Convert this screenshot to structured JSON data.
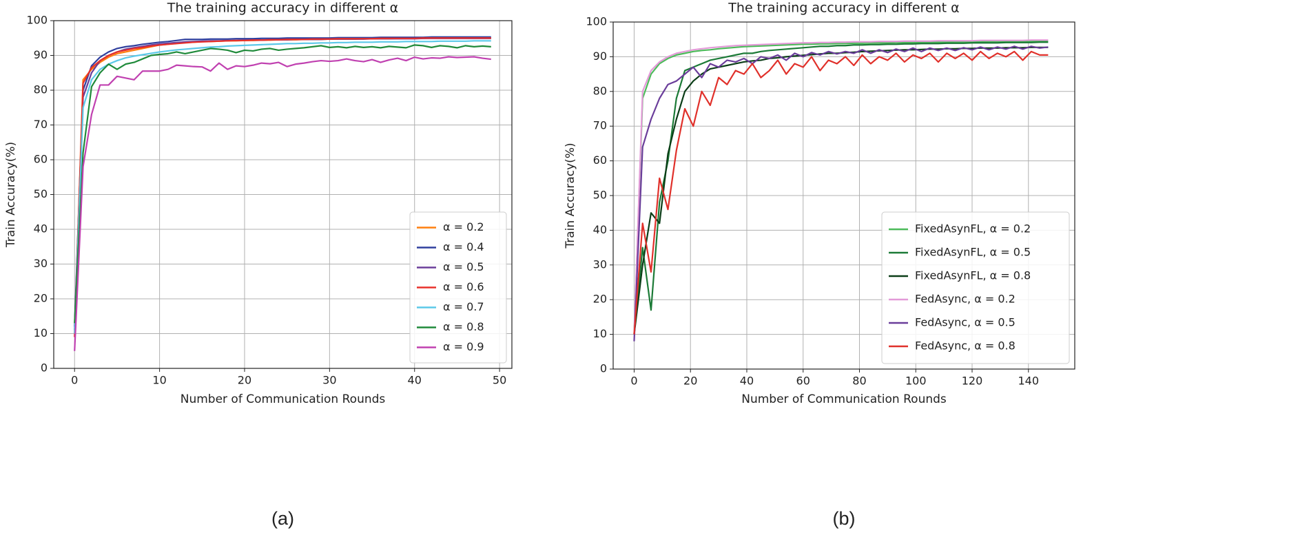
{
  "chart_data": [
    {
      "type": "line",
      "title": "The training accuracy in different α",
      "caption": "(a)",
      "xlabel": "Number of Communication Rounds",
      "ylabel": "Train Accuracy(%)",
      "x": [
        0,
        1,
        2,
        3,
        4,
        5,
        6,
        7,
        8,
        9,
        10,
        11,
        12,
        13,
        14,
        15,
        16,
        17,
        18,
        19,
        20,
        21,
        22,
        23,
        24,
        25,
        26,
        27,
        28,
        29,
        30,
        31,
        32,
        33,
        34,
        35,
        36,
        37,
        38,
        39,
        40,
        41,
        42,
        43,
        44,
        45,
        46,
        47,
        48,
        49
      ],
      "xlim": [
        -2.45,
        51.45
      ],
      "xticks": [
        0,
        10,
        20,
        30,
        40,
        50
      ],
      "ylim": [
        0,
        100
      ],
      "yticks": [
        0,
        10,
        20,
        30,
        40,
        50,
        60,
        70,
        80,
        90,
        100
      ],
      "grid": true,
      "legend": "lower right",
      "series": [
        {
          "name": "α = 0.2",
          "color": "#ff7f0e",
          "values": [
            10,
            83,
            86,
            88,
            89.5,
            90.5,
            91,
            91.5,
            92,
            92.5,
            93,
            93.2,
            93.5,
            93.7,
            93.8,
            94,
            94,
            94.1,
            94.2,
            94.2,
            94.3,
            94.3,
            94.4,
            94.4,
            94.5,
            94.5,
            94.5,
            94.6,
            94.6,
            94.6,
            94.7,
            94.7,
            94.7,
            94.7,
            94.8,
            94.8,
            94.8,
            94.8,
            94.9,
            94.9,
            94.9,
            94.9,
            95,
            95,
            95,
            95,
            95,
            95,
            95,
            95
          ]
        },
        {
          "name": "α = 0.4",
          "color": "#2f3f9e",
          "values": [
            12,
            80,
            87,
            89.5,
            91,
            92,
            92.5,
            92.8,
            93.2,
            93.5,
            93.8,
            94,
            94.3,
            94.6,
            94.6,
            94.6,
            94.7,
            94.7,
            94.7,
            94.8,
            94.8,
            94.8,
            94.9,
            94.9,
            94.9,
            95,
            95,
            95,
            95,
            95,
            95,
            95.1,
            95.1,
            95.1,
            95.1,
            95.1,
            95.2,
            95.2,
            95.2,
            95.2,
            95.2,
            95.2,
            95.3,
            95.3,
            95.3,
            95.3,
            95.3,
            95.3,
            95.3,
            95.3
          ]
        },
        {
          "name": "α = 0.5",
          "color": "#6a3d9a",
          "values": [
            11,
            78,
            85,
            88.5,
            90,
            91,
            91.8,
            92.2,
            92.6,
            93,
            93.3,
            93.5,
            93.7,
            93.9,
            94,
            94.1,
            94.2,
            94.2,
            94.3,
            94.3,
            94.4,
            94.4,
            94.4,
            94.5,
            94.5,
            94.5,
            94.6,
            94.6,
            94.6,
            94.6,
            94.7,
            94.7,
            94.7,
            94.7,
            94.7,
            94.8,
            94.8,
            94.8,
            94.8,
            94.8,
            94.8,
            94.9,
            94.9,
            94.9,
            94.9,
            94.9,
            94.9,
            94.9,
            94.9,
            94.9
          ]
        },
        {
          "name": "α = 0.6",
          "color": "#e8302a",
          "values": [
            9,
            82,
            86.5,
            88.5,
            90,
            91,
            91.5,
            92,
            92.3,
            92.7,
            93,
            93.2,
            93.4,
            93.6,
            93.8,
            93.9,
            94,
            94.1,
            94.2,
            94.3,
            94.3,
            94.4,
            94.4,
            94.5,
            94.5,
            94.6,
            94.6,
            94.6,
            94.7,
            94.7,
            94.7,
            94.8,
            94.8,
            94.8,
            94.8,
            94.8,
            94.9,
            94.9,
            94.9,
            94.9,
            94.9,
            95,
            95,
            95,
            95,
            95,
            95,
            95,
            95,
            95
          ]
        },
        {
          "name": "α = 0.7",
          "color": "#5bc8e8",
          "values": [
            10,
            75,
            83,
            86,
            87.5,
            88.5,
            89.3,
            89.8,
            90.2,
            90.6,
            91,
            91.3,
            91.6,
            91.8,
            92,
            92.2,
            92.4,
            92.5,
            92.7,
            92.8,
            92.9,
            93,
            93.1,
            93.2,
            93.3,
            93.4,
            93.4,
            93.5,
            93.5,
            93.6,
            93.6,
            93.7,
            93.7,
            93.8,
            93.8,
            93.8,
            93.9,
            93.9,
            93.9,
            94,
            94,
            94,
            94,
            94.1,
            94.1,
            94.1,
            94.1,
            94.2,
            94.2,
            94.2
          ]
        },
        {
          "name": "α = 0.8",
          "color": "#1f8a3a",
          "values": [
            13,
            62,
            81,
            85,
            87.5,
            86,
            87.5,
            88,
            89,
            90,
            90.3,
            90.5,
            91,
            90.5,
            91,
            91.5,
            92,
            91.8,
            91.5,
            90.8,
            91.5,
            91.3,
            91.8,
            92,
            91.5,
            91.8,
            92,
            92.2,
            92.5,
            92.8,
            92.3,
            92.5,
            92.2,
            92.6,
            92.3,
            92.5,
            92.2,
            92.6,
            92.4,
            92.2,
            93,
            92.8,
            92.3,
            92.8,
            92.6,
            92.2,
            92.8,
            92.5,
            92.7,
            92.5
          ]
        },
        {
          "name": "α = 0.9",
          "color": "#c040b0",
          "values": [
            5,
            58,
            73,
            81.5,
            81.5,
            84,
            83.5,
            83,
            85.5,
            85.5,
            85.5,
            86,
            87.2,
            87,
            86.8,
            86.7,
            85.5,
            87.8,
            86,
            87,
            86.8,
            87.2,
            87.8,
            87.6,
            88,
            86.8,
            87.5,
            87.8,
            88.2,
            88.5,
            88.3,
            88.5,
            89,
            88.5,
            88.2,
            88.8,
            88,
            88.7,
            89.2,
            88.5,
            89.5,
            89,
            89.3,
            89.2,
            89.6,
            89.4,
            89.5,
            89.6,
            89.2,
            88.9
          ]
        }
      ]
    },
    {
      "type": "line",
      "title": "The training accuracy in different α",
      "caption": "(b)",
      "xlabel": "Number of Communication Rounds",
      "ylabel": "Train Accuracy(%)",
      "x": [
        0,
        3,
        6,
        9,
        12,
        15,
        18,
        21,
        24,
        27,
        30,
        33,
        36,
        39,
        42,
        45,
        48,
        51,
        54,
        57,
        60,
        63,
        66,
        69,
        72,
        75,
        78,
        81,
        84,
        87,
        90,
        93,
        96,
        99,
        102,
        105,
        108,
        111,
        114,
        117,
        120,
        123,
        126,
        129,
        132,
        135,
        138,
        141,
        144,
        147
      ],
      "xlim": [
        -7.45,
        156.45
      ],
      "xticks": [
        0,
        20,
        40,
        60,
        80,
        100,
        120,
        140
      ],
      "ylim": [
        0,
        100
      ],
      "yticks": [
        0,
        10,
        20,
        30,
        40,
        50,
        60,
        70,
        80,
        90,
        100
      ],
      "grid": true,
      "legend": "lower right",
      "series": [
        {
          "name": "FixedAsynFL, α = 0.2",
          "color": "#4cbb5a",
          "values": [
            10,
            78,
            85,
            88,
            89.5,
            90.5,
            91,
            91.5,
            91.8,
            92,
            92.3,
            92.5,
            92.7,
            92.9,
            93,
            93.1,
            93.2,
            93.3,
            93.4,
            93.5,
            93.6,
            93.6,
            93.7,
            93.7,
            93.8,
            93.8,
            93.9,
            93.9,
            94,
            94,
            94,
            94.1,
            94.1,
            94.1,
            94.2,
            94.2,
            94.2,
            94.2,
            94.3,
            94.3,
            94.3,
            94.3,
            94.4,
            94.4,
            94.4,
            94.4,
            94.4,
            94.5,
            94.5,
            94.5
          ]
        },
        {
          "name": "FixedAsynFL, α = 0.5",
          "color": "#1b7a36",
          "values": [
            10,
            35,
            17,
            48,
            60,
            78,
            86,
            87,
            88,
            89,
            89.5,
            90,
            90.5,
            91,
            91,
            91.5,
            91.8,
            92,
            92.2,
            92.4,
            92.6,
            92.8,
            93,
            93,
            93.2,
            93.2,
            93.4,
            93.4,
            93.5,
            93.5,
            93.6,
            93.6,
            93.7,
            93.7,
            93.8,
            93.8,
            93.8,
            93.9,
            93.9,
            93.9,
            94,
            94,
            94,
            94,
            94.1,
            94.1,
            94.1,
            94.1,
            94.2,
            94.2
          ]
        },
        {
          "name": "FixedAsynFL, α = 0.8",
          "color": "#0b3d17",
          "values": [
            10,
            30,
            45,
            42,
            62,
            72,
            80,
            83,
            85,
            86.5,
            87,
            87.5,
            88,
            88.5,
            88.8,
            89,
            89.5,
            89.7,
            90,
            90.2,
            90.4,
            90.6,
            90.8,
            91,
            91,
            91.2,
            91.3,
            91.5,
            91.6,
            91.7,
            91.8,
            91.9,
            92,
            92,
            92.1,
            92.2,
            92.2,
            92.3,
            92.3,
            92.4,
            92.4,
            92.5,
            92.5,
            92.5,
            92.6,
            92.6,
            92.6,
            92.7,
            92.7,
            92.7
          ]
        },
        {
          "name": "FedAsync, α = 0.2",
          "color": "#e39ad8",
          "values": [
            10,
            80,
            86,
            88.5,
            90,
            91,
            91.5,
            92,
            92.3,
            92.6,
            92.8,
            93,
            93.2,
            93.3,
            93.4,
            93.5,
            93.6,
            93.7,
            93.8,
            93.9,
            94,
            94,
            94.1,
            94.1,
            94.2,
            94.2,
            94.3,
            94.3,
            94.3,
            94.4,
            94.4,
            94.4,
            94.5,
            94.5,
            94.5,
            94.5,
            94.6,
            94.6,
            94.6,
            94.6,
            94.6,
            94.7,
            94.7,
            94.7,
            94.7,
            94.7,
            94.7,
            94.8,
            94.8,
            94.8
          ]
        },
        {
          "name": "FedAsync, α = 0.5",
          "color": "#6a3d9a",
          "values": [
            8,
            64,
            72,
            78,
            82,
            83,
            85,
            87,
            84,
            88,
            87,
            89,
            88.5,
            89.5,
            88,
            90,
            89.5,
            90.5,
            89,
            91,
            90,
            91.2,
            90.5,
            91.5,
            90.8,
            91.5,
            91,
            92,
            91,
            92,
            91.2,
            92.2,
            91.5,
            92.5,
            91.5,
            92.5,
            91.8,
            92.5,
            91.8,
            92.6,
            92,
            92.8,
            92,
            92.8,
            92.2,
            93,
            92.2,
            93,
            92.5,
            92.8
          ]
        },
        {
          "name": "FedAsync, α = 0.8",
          "color": "#e0302a",
          "values": [
            10,
            42,
            28,
            55,
            46,
            63,
            75,
            70,
            80,
            76,
            84,
            82,
            86,
            85,
            88,
            84,
            86,
            89,
            85,
            88,
            87,
            90,
            86,
            89,
            88,
            90,
            87.5,
            90.5,
            88,
            90,
            89,
            91,
            88.5,
            90.5,
            89.5,
            91,
            88.5,
            91,
            89.5,
            91,
            89,
            91.5,
            89.5,
            91,
            90,
            91.5,
            89,
            91.5,
            90.5,
            90.5
          ]
        }
      ]
    }
  ]
}
